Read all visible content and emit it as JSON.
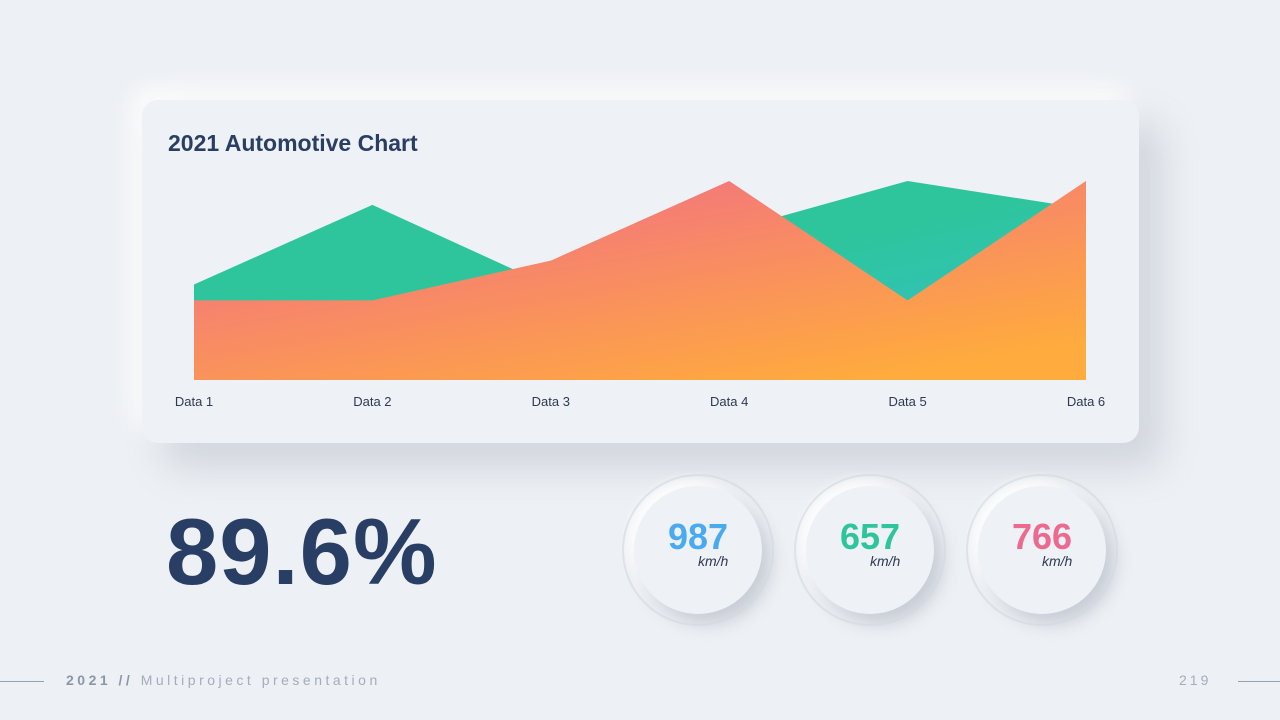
{
  "chart_data": {
    "type": "area",
    "title": "2021 Automotive Chart",
    "categories": [
      "Data 1",
      "Data 2",
      "Data 3",
      "Data 4",
      "Data 5",
      "Data 6"
    ],
    "ylim": [
      0,
      100
    ],
    "series": [
      {
        "values": [
          48,
          88,
          47,
          75,
          100,
          86
        ],
        "fill_start": "#2ec59c",
        "fill_end": "#36bfcf"
      },
      {
        "values": [
          40,
          40,
          60,
          100,
          40,
          100
        ],
        "fill_start": "#f0688e",
        "fill_end": "#ffab3d"
      }
    ],
    "grid": false,
    "legend": "none"
  },
  "stat": {
    "value": "89.6%",
    "color": "#283e64"
  },
  "gauges": [
    {
      "value": "987",
      "unit": "km/h",
      "color": "#4aaaf0"
    },
    {
      "value": "657",
      "unit": "km/h",
      "color": "#2ec59c"
    },
    {
      "value": "766",
      "unit": "km/h",
      "color": "#ec6a8e"
    }
  ],
  "footer": {
    "year": "2021",
    "separator": " // ",
    "title": "Multiproject presentation",
    "page": "219"
  }
}
